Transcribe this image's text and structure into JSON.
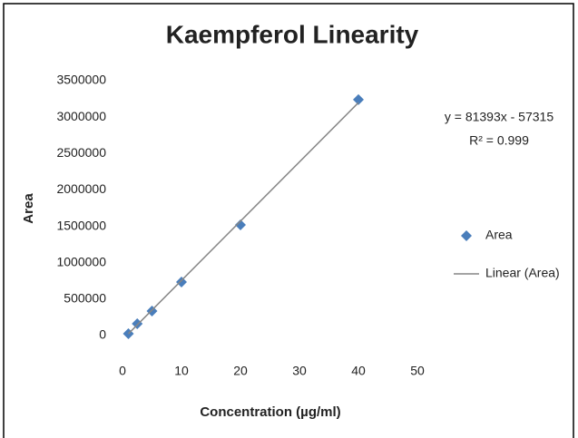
{
  "chart_data": {
    "type": "scatter",
    "title": "Kaempferol Linearity",
    "x_label": "Concentration (µg/ml)",
    "y_label": "Area",
    "xlim": [
      0,
      50
    ],
    "xticks": [
      0,
      10,
      20,
      30,
      40,
      50
    ],
    "ylim": [
      0,
      3500000
    ],
    "yticks": [
      0,
      500000,
      1000000,
      1500000,
      2000000,
      2500000,
      3000000,
      3500000
    ],
    "grid": false,
    "annotations": [
      "y = 81393x - 57315",
      "R² = 0.999"
    ],
    "series": [
      {
        "name": "Area",
        "color": "#4a7ebb",
        "kind": "markers",
        "x": [
          1,
          2.5,
          5,
          10,
          20,
          40
        ],
        "values": [
          25000,
          162000,
          336000,
          735000,
          1520000,
          3240000
        ]
      },
      {
        "name": "Linear (Area)",
        "color": "#868686",
        "kind": "line",
        "x": [
          1,
          40
        ],
        "values": [
          24078,
          3198405
        ]
      }
    ]
  }
}
